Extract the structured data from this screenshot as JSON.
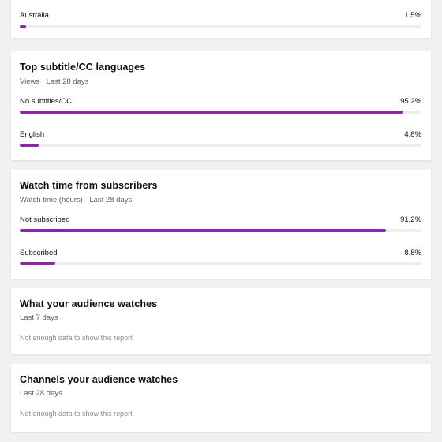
{
  "theme": {
    "accent": "#8e24aa",
    "track": "#eeeeee",
    "background": "#f1f1f1"
  },
  "cards": {
    "countries": {
      "rows": [
        {
          "label": "Australia",
          "value": "1.5%",
          "fraction": 0.015
        }
      ]
    },
    "subtitles": {
      "title": "Top subtitle/CC languages",
      "subtitle": "Views · Last 28 days",
      "rows": [
        {
          "label": "No subtitles/CC",
          "value": "95.2%",
          "fraction": 0.952
        },
        {
          "label": "English",
          "value": "4.8%",
          "fraction": 0.048
        }
      ]
    },
    "subscribers": {
      "title": "Watch time from subscribers",
      "subtitle": "Watch time (hours) · Last 28 days",
      "rows": [
        {
          "label": "Not subscribed",
          "value": "91.2%",
          "fraction": 0.912
        },
        {
          "label": "Subscribed",
          "value": "8.8%",
          "fraction": 0.088
        }
      ]
    },
    "audience_watches": {
      "title": "What your audience watches",
      "subtitle": "Last 7 days",
      "message": "Not enough data to show this report"
    },
    "channels_watched": {
      "title": "Channels your audience watches",
      "subtitle": "Last 28 days",
      "message": "Not enough data to show this report"
    }
  }
}
